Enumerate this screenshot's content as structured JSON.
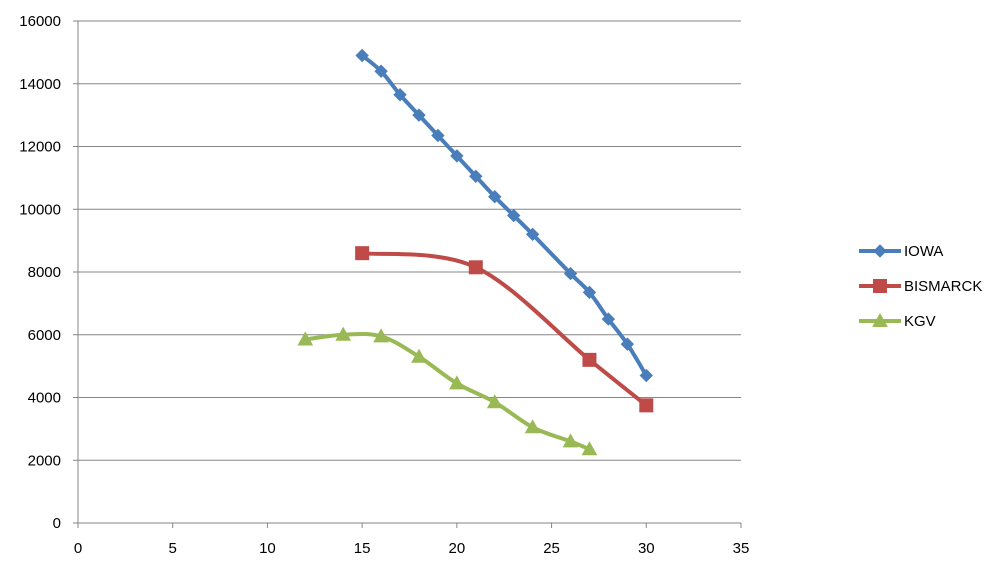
{
  "chart_data": {
    "type": "line",
    "xlim": [
      0,
      35
    ],
    "ylim": [
      0,
      16000
    ],
    "x_ticks": [
      0,
      5,
      10,
      15,
      20,
      25,
      30,
      35
    ],
    "y_ticks": [
      0,
      2000,
      4000,
      6000,
      8000,
      10000,
      12000,
      14000,
      16000
    ],
    "grid": "horizontal",
    "legend_position": "right",
    "series": [
      {
        "name": "IOWA",
        "color": "#4a7ebb",
        "marker": "diamond",
        "points": [
          [
            15,
            14900
          ],
          [
            16,
            14400
          ],
          [
            17,
            13650
          ],
          [
            18,
            13000
          ],
          [
            19,
            12350
          ],
          [
            20,
            11700
          ],
          [
            21,
            11050
          ],
          [
            22,
            10400
          ],
          [
            23,
            9800
          ],
          [
            24,
            9200
          ],
          [
            26,
            7950
          ],
          [
            27,
            7350
          ],
          [
            28,
            6500
          ],
          [
            29,
            5700
          ],
          [
            30,
            4700
          ]
        ]
      },
      {
        "name": "BISMARCK",
        "color": "#be4b48",
        "marker": "square",
        "points": [
          [
            15,
            8600
          ],
          [
            21,
            8150
          ],
          [
            27,
            5200
          ],
          [
            30,
            3750
          ]
        ]
      },
      {
        "name": "KGV",
        "color": "#98b954",
        "marker": "triangle",
        "points": [
          [
            12,
            5850
          ],
          [
            14,
            6000
          ],
          [
            16,
            5950
          ],
          [
            18,
            5300
          ],
          [
            20,
            4450
          ],
          [
            22,
            3850
          ],
          [
            24,
            3050
          ],
          [
            26,
            2600
          ],
          [
            27,
            2350
          ]
        ]
      }
    ]
  }
}
